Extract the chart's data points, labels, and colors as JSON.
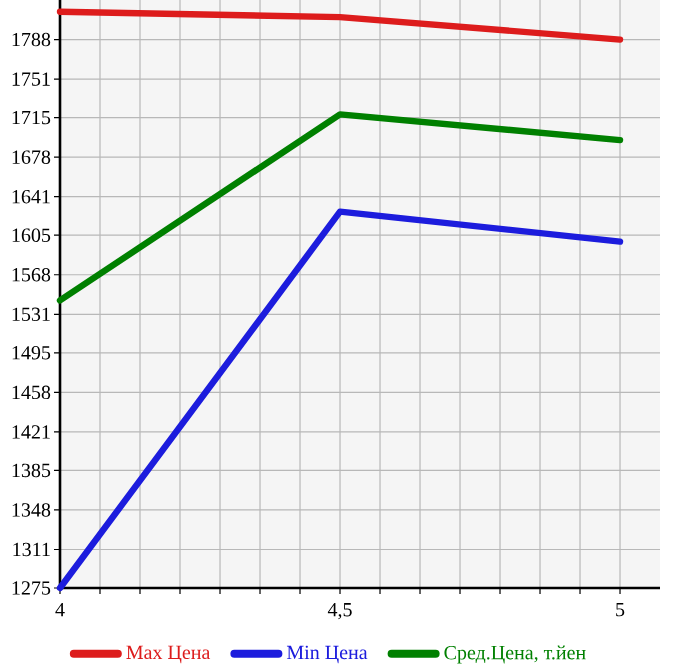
{
  "chart_data": {
    "type": "line",
    "x": [
      4,
      4.5,
      5
    ],
    "series": [
      {
        "name": "Max Цена",
        "color": "#dd1c1c",
        "values": [
          1814,
          1809,
          1788
        ]
      },
      {
        "name": "Min Цена",
        "color": "#1c1cdd",
        "values": [
          1275,
          1627,
          1599
        ]
      },
      {
        "name": "Сред.Цена, т.йен",
        "color": "#008000",
        "values": [
          1544,
          1718,
          1694
        ]
      }
    ],
    "xlim": [
      4,
      5.0714
    ],
    "xticks": [
      {
        "value": 4,
        "label": "4"
      },
      {
        "value": 4.5,
        "label": "4,5"
      },
      {
        "value": 5,
        "label": "5"
      }
    ],
    "ylim": [
      1275,
      1825
    ],
    "yticks": [
      1275,
      1311,
      1348,
      1385,
      1421,
      1458,
      1495,
      1531,
      1568,
      1605,
      1641,
      1678,
      1715,
      1751,
      1788
    ],
    "grid": true,
    "legend": "bottom",
    "marker": "none",
    "line_style": "solid"
  }
}
